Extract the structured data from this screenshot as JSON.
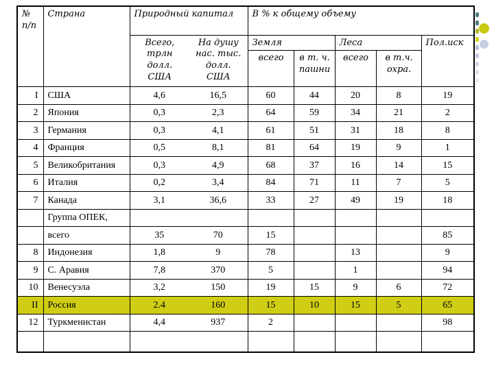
{
  "slide": {
    "background": "#ffffff"
  },
  "table": {
    "highlight_color": "#d0cd15",
    "headers": {
      "num": "№ п/п",
      "country": "Страна",
      "natural_capital": "Природный капитал",
      "percent": "В % к  общему объему",
      "total_trln": "Всего, трлн долл. США",
      "per_capita": "На душу нас. тыс. долл. США",
      "land": "Земля",
      "forest": "Леса",
      "minerals": "Пол.иск",
      "land_total": "всего",
      "land_arable": "в т. ч. пашни",
      "forest_total": "всего",
      "forest_protected": "в т.ч. охра."
    },
    "rows": [
      {
        "num": "I",
        "country": "США",
        "values": [
          "4,6",
          "16,5",
          "60",
          "44",
          "20",
          "8",
          "19"
        ],
        "highlight": false
      },
      {
        "num": "2",
        "country": "Япония",
        "values": [
          "0,3",
          "2,3",
          "64",
          "59",
          "34",
          "21",
          "2"
        ],
        "highlight": false
      },
      {
        "num": "3",
        "country": "Германия",
        "values": [
          "0,3",
          "4,1",
          "61",
          "51",
          "31",
          "18",
          "8"
        ],
        "highlight": false
      },
      {
        "num": "4",
        "country": "Франция",
        "values": [
          "0,5",
          "8,1",
          "81",
          "64",
          "19",
          "9",
          "1"
        ],
        "highlight": false
      },
      {
        "num": "5",
        "country": "Великобритания",
        "values": [
          "0,3",
          "4,9",
          "68",
          "37",
          "16",
          "14",
          "15"
        ],
        "highlight": false
      },
      {
        "num": "6",
        "country": "Италия",
        "values": [
          "0,2",
          "3,4",
          "84",
          "71",
          "11",
          "7",
          "5"
        ],
        "highlight": false
      },
      {
        "num": "7",
        "country": "Канада",
        "values": [
          "3,1",
          "36,6",
          "33",
          "27",
          "49",
          "19",
          "18"
        ],
        "highlight": false
      },
      {
        "num": "",
        "country": "Группа ОПЕК,",
        "values": [
          "",
          "",
          "",
          "",
          "",
          "",
          ""
        ],
        "highlight": false
      },
      {
        "num": "",
        "country": "всего",
        "values": [
          "35",
          "70",
          "15",
          "",
          "",
          "",
          "85"
        ],
        "highlight": false
      },
      {
        "num": "8",
        "country": "Индонезия",
        "values": [
          "1,8",
          "9",
          "78",
          "",
          "13",
          "",
          "9"
        ],
        "highlight": false
      },
      {
        "num": "9",
        "country": "С. Аравия",
        "values": [
          "7,8",
          "370",
          "5",
          "",
          "1",
          "",
          "94"
        ],
        "highlight": false
      },
      {
        "num": "10",
        "country": "Венесуэла",
        "values": [
          "3,2",
          "150",
          "19",
          "15",
          "9",
          "6",
          "72"
        ],
        "highlight": false
      },
      {
        "num": "II",
        "country": "Россия",
        "values": [
          "2.4",
          "160",
          "15",
          "10",
          "15",
          "5",
          "65"
        ],
        "highlight": true
      },
      {
        "num": "12",
        "country": "Туркменистан",
        "values": [
          "4,4",
          "937",
          "2",
          "",
          "",
          "",
          "98"
        ],
        "highlight": false
      },
      {
        "num": "",
        "country": "",
        "values": [
          "",
          "",
          "",
          "",
          "",
          "",
          ""
        ],
        "highlight": false
      }
    ]
  },
  "decoration": {
    "squares": [
      "#507d7d",
      "#507d7d",
      "#b4b82f",
      "#d8d41a",
      "#b7bdd6",
      "#c6cbe0",
      "#d3d7e7",
      "#dee1ed",
      "#e9ebf3"
    ],
    "circle_yellow": "#c9ca12",
    "circle_blue": "#c9cfe2"
  }
}
